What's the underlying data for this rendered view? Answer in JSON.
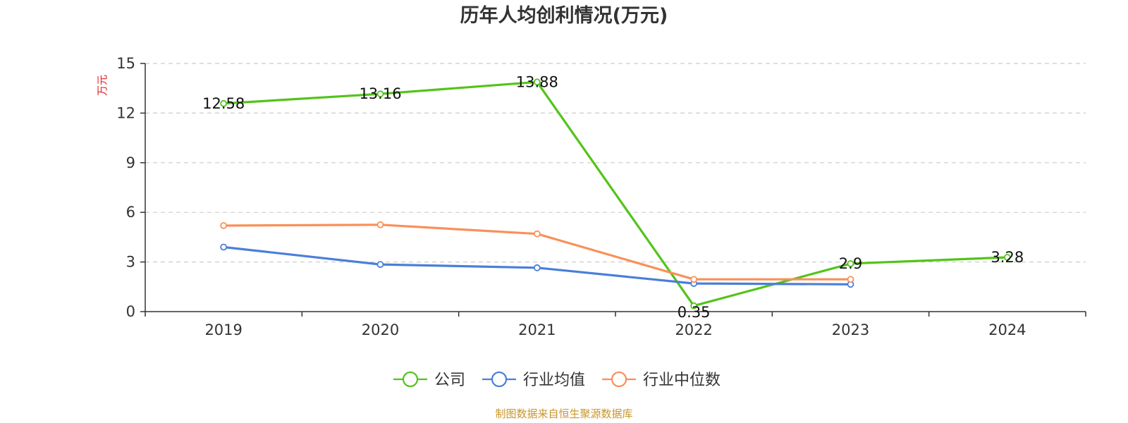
{
  "colors": {
    "company": "#52c41a",
    "industry_avg": "#4a7fd8",
    "industry_median": "#f99059",
    "y_unit": "#e02020",
    "source": "#c8962c",
    "axis": "#333333",
    "grid": "#cccccc"
  },
  "source_note": "制图数据来自恒生聚源数据库",
  "chart_data": {
    "type": "line",
    "title": "历年人均创利情况(万元)",
    "ylabel": "万元",
    "xlabel": "",
    "categories": [
      "2019",
      "2020",
      "2021",
      "2022",
      "2023",
      "2024"
    ],
    "ylim": [
      0,
      15
    ],
    "yticks": [
      "0",
      "3",
      "6",
      "9",
      "12",
      "15"
    ],
    "grid": "horizontal-dashed",
    "legend_position": "bottom",
    "series": [
      {
        "name": "公司",
        "color": "#52c41a",
        "values": [
          12.58,
          13.16,
          13.88,
          0.35,
          2.9,
          3.28
        ],
        "labels": [
          "12.58",
          "13.16",
          "13.88",
          "0.35",
          "2.9",
          "3.28"
        ]
      },
      {
        "name": "行业均值",
        "color": "#4a7fd8",
        "values": [
          3.9,
          2.85,
          2.65,
          1.7,
          1.65,
          null
        ],
        "labels": null
      },
      {
        "name": "行业中位数",
        "color": "#f99059",
        "values": [
          5.2,
          5.25,
          4.7,
          1.95,
          1.95,
          null
        ],
        "labels": null
      }
    ]
  }
}
